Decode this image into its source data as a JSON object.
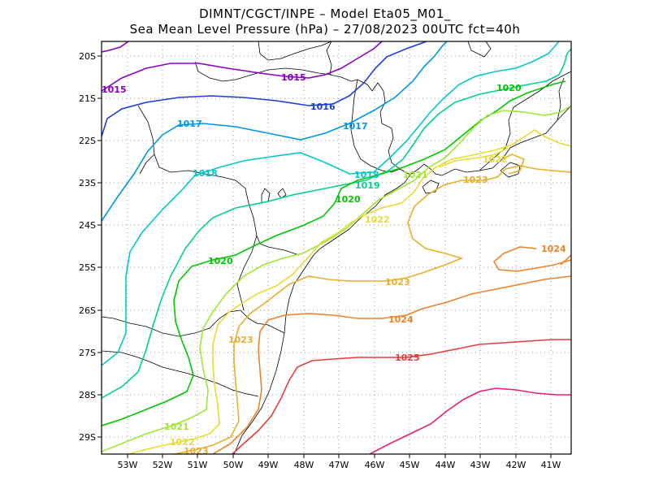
{
  "title": {
    "line1": "DIMNT/CGCT/INPE –  Model Eta05_M01_",
    "line2": "Sea Mean Level Pressure (hPa) – 27/08/2023 00UTC fct=40h"
  },
  "axes": {
    "lon_labels": [
      "53W",
      "52W",
      "51W",
      "50W",
      "49W",
      "48W",
      "47W",
      "46W",
      "45W",
      "44W",
      "43W",
      "42W",
      "41W"
    ],
    "lat_labels": [
      "20S",
      "21S",
      "22S",
      "23S",
      "24S",
      "25S",
      "26S",
      "27S",
      "28S",
      "29S"
    ]
  },
  "contour_labels": {
    "c1015a": "1015",
    "c1015b": "1015",
    "c1016": "1016",
    "c1017a": "1017",
    "c1017b": "1017",
    "c1018a": "1018",
    "c1018b": "1018",
    "c1019": "1019",
    "c1020a": "1020",
    "c1020b": "1020",
    "c1020c": "1020",
    "c1021a": "1021",
    "c1021b": "1021",
    "c1022a": "1022",
    "c1022b": "1022",
    "c1022c": "1022",
    "c1023a": "1023",
    "c1023b": "1023",
    "c1023c": "1023",
    "c1023d": "1023",
    "c1024a": "1024",
    "c1024b": "1024",
    "c1025": "1025"
  },
  "colors": {
    "c1015": "#8a00c8",
    "c1016": "#1e3cdc",
    "c1017": "#0096e6",
    "c1018": "#00c8c8",
    "c1019": "#00d28c",
    "c1020": "#00c800",
    "c1021": "#a0e632",
    "c1022": "#e6dc32",
    "c1023": "#e6af2d",
    "c1024": "#f08228",
    "c1025": "#e63c3c",
    "c1026": "#e61e78"
  }
}
